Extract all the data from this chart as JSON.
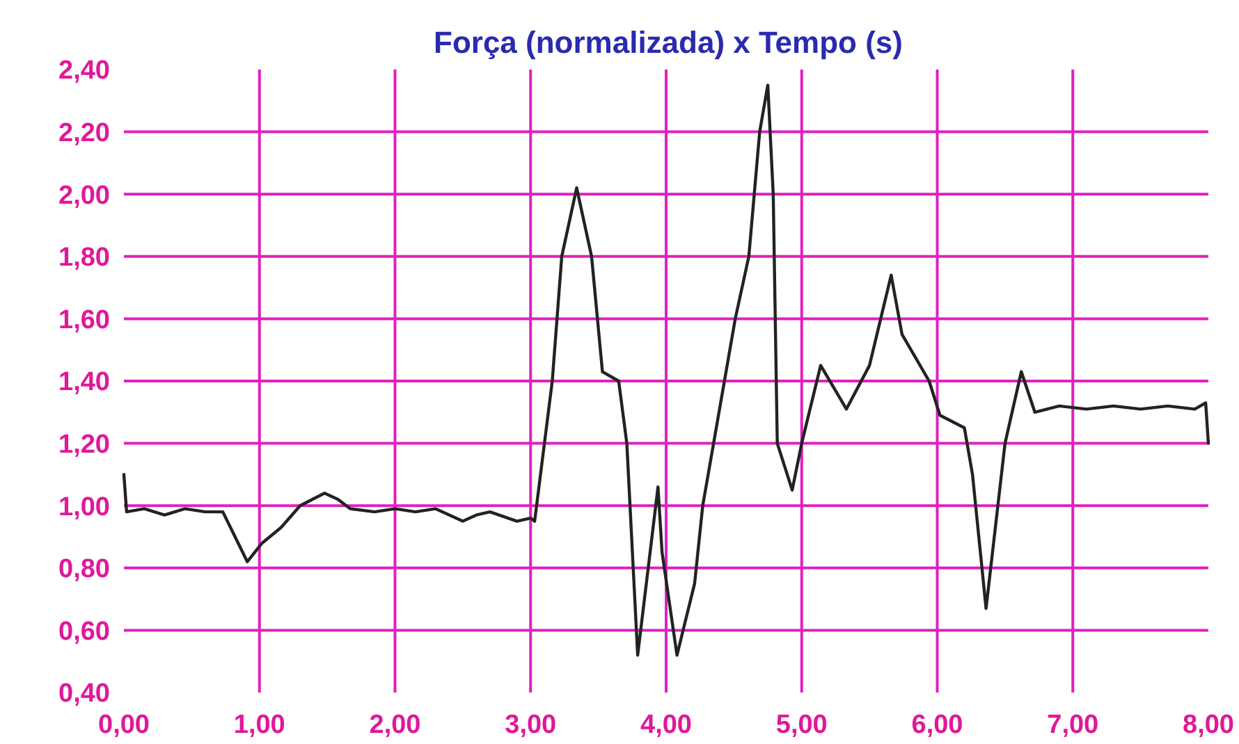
{
  "chart_data": {
    "type": "line",
    "title": "Força (normalizada) x Tempo (s)",
    "xlim": [
      0,
      8
    ],
    "ylim": [
      0.4,
      2.4
    ],
    "xticks": [
      {
        "value": 0,
        "label": "0,00"
      },
      {
        "value": 1,
        "label": "1,00"
      },
      {
        "value": 2,
        "label": "2,00"
      },
      {
        "value": 3,
        "label": "3,00"
      },
      {
        "value": 4,
        "label": "4,00"
      },
      {
        "value": 5,
        "label": "5,00"
      },
      {
        "value": 6,
        "label": "6,00"
      },
      {
        "value": 7,
        "label": "7,00"
      },
      {
        "value": 8,
        "label": "8,00"
      }
    ],
    "yticks": [
      {
        "value": 0.4,
        "label": "0,40"
      },
      {
        "value": 0.6,
        "label": "0,60"
      },
      {
        "value": 0.8,
        "label": "0,80"
      },
      {
        "value": 1,
        "label": "1,00"
      },
      {
        "value": 1.2,
        "label": "1,20"
      },
      {
        "value": 1.4,
        "label": "1,40"
      },
      {
        "value": 1.6,
        "label": "1,60"
      },
      {
        "value": 1.8,
        "label": "1,80"
      },
      {
        "value": 2,
        "label": "2,00"
      },
      {
        "value": 2.2,
        "label": "2,20"
      },
      {
        "value": 2.4,
        "label": "2,40"
      }
    ],
    "grid": true,
    "series": [
      {
        "color": "#222222",
        "x": [
          0,
          0.02,
          0.15,
          0.3,
          0.45,
          0.6,
          0.73,
          0.82,
          0.91,
          1.02,
          1.16,
          1.3,
          1.48,
          1.58,
          1.67,
          1.85,
          2.0,
          2.15,
          2.3,
          2.5,
          2.6,
          2.7,
          2.9,
          3.0,
          3.03,
          3.16,
          3.23,
          3.34,
          3.45,
          3.53,
          3.65,
          3.71,
          3.79,
          3.94,
          3.97,
          4.08,
          4.21,
          4.27,
          4.35,
          4.51,
          4.61,
          4.69,
          4.75,
          4.79,
          4.82,
          4.93,
          5.0,
          5.14,
          5.33,
          5.5,
          5.66,
          5.74,
          5.94,
          6.02,
          6.2,
          6.26,
          6.36,
          6.5,
          6.62,
          6.72,
          6.9,
          7.1,
          7.3,
          7.5,
          7.7,
          7.9,
          7.98,
          8.0
        ],
        "values": [
          1.1,
          0.98,
          0.99,
          0.97,
          0.99,
          0.98,
          0.98,
          0.9,
          0.82,
          0.88,
          0.93,
          1.0,
          1.04,
          1.02,
          0.99,
          0.98,
          0.99,
          0.98,
          0.99,
          0.95,
          0.97,
          0.98,
          0.95,
          0.96,
          0.95,
          1.4,
          1.8,
          2.02,
          1.8,
          1.43,
          1.4,
          1.2,
          0.52,
          1.06,
          0.85,
          0.52,
          0.75,
          1.0,
          1.2,
          1.6,
          1.8,
          2.2,
          2.35,
          2.0,
          1.2,
          1.05,
          1.2,
          1.45,
          1.31,
          1.45,
          1.74,
          1.55,
          1.4,
          1.29,
          1.25,
          1.1,
          0.67,
          1.2,
          1.43,
          1.3,
          1.32,
          1.31,
          1.32,
          1.31,
          1.32,
          1.31,
          1.33,
          1.2
        ]
      }
    ]
  }
}
